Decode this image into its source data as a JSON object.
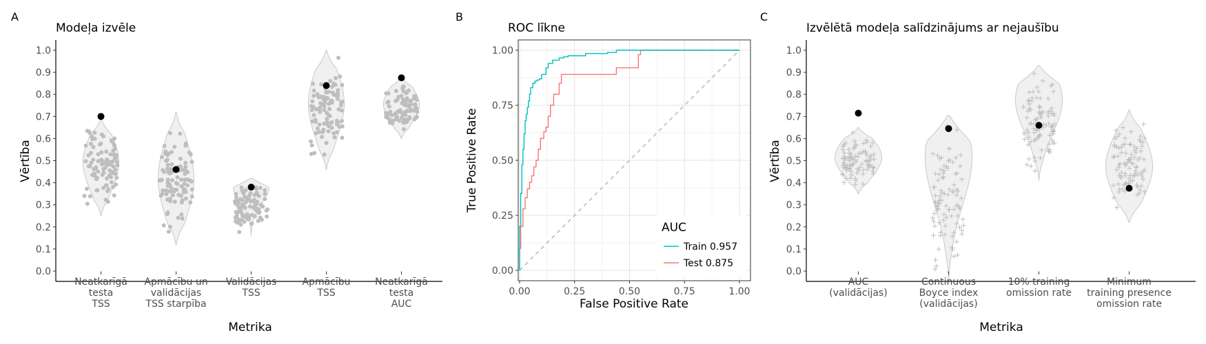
{
  "panels": {
    "a": {
      "tag": "A",
      "title": "Modeļa izvēle",
      "ylabel": "Vērtība",
      "xlabel": "Metrika",
      "yticks": [
        "0.0",
        "0.1",
        "0.2",
        "0.3",
        "0.4",
        "0.5",
        "0.6",
        "0.7",
        "0.8",
        "0.9",
        "1.0"
      ]
    },
    "b": {
      "tag": "B",
      "title": "ROC līkne",
      "ylabel": "True Positive Rate",
      "xlabel": "False Positive Rate",
      "xticks": [
        "0.00",
        "0.25",
        "0.50",
        "0.75",
        "1.00"
      ],
      "yticks": [
        "0.00",
        "0.25",
        "0.50",
        "0.75",
        "1.00"
      ],
      "legend": {
        "title": "AUC",
        "items": [
          "Train 0.957",
          "Test 0.875"
        ]
      }
    },
    "c": {
      "tag": "C",
      "title": "Izvēlētā modeļa salīdzinājums ar nejaušību",
      "ylabel": "Vērtība",
      "xlabel": "Metrika",
      "yticks": [
        "0.0",
        "0.1",
        "0.2",
        "0.3",
        "0.4",
        "0.5",
        "0.6",
        "0.7",
        "0.8",
        "0.9",
        "1.0"
      ]
    }
  },
  "chart_data": [
    {
      "type": "violin",
      "title": "Modeļa izvēle",
      "xlabel": "Metrika",
      "ylabel": "Vērtība",
      "ylim": [
        0,
        1
      ],
      "point_color": "#bebebe",
      "violin_fill": "#f0f0f0",
      "selected_color": "#000000",
      "categories": [
        {
          "label": [
            "Neatkarīgā",
            "testa",
            "TSS"
          ],
          "min": 0.25,
          "max": 0.69,
          "selected": 0.7
        },
        {
          "label": [
            "Apmācību un",
            "validācijas",
            "TSS starpība"
          ],
          "min": 0.12,
          "max": 0.72,
          "selected": 0.46
        },
        {
          "label": [
            "Validācijas",
            "TSS"
          ],
          "min": 0.16,
          "max": 0.42,
          "selected": 0.38
        },
        {
          "label": [
            "Apmācību",
            "TSS"
          ],
          "min": 0.46,
          "max": 1.0,
          "selected": 0.84
        },
        {
          "label": [
            "Neatkarīgā",
            "testa",
            "AUC"
          ],
          "min": 0.6,
          "max": 0.88,
          "selected": 0.875
        }
      ]
    },
    {
      "type": "line",
      "title": "ROC līkne",
      "xlabel": "False Positive Rate",
      "ylabel": "True Positive Rate",
      "xlim": [
        0,
        1
      ],
      "ylim": [
        0,
        1
      ],
      "grid": true,
      "legend_position": "bottom-right",
      "legend_title": "AUC",
      "series": [
        {
          "name": "Train 0.957",
          "color": "#00bfc4",
          "x": [
            0,
            0,
            0.005,
            0.005,
            0.01,
            0.01,
            0.015,
            0.015,
            0.02,
            0.02,
            0.025,
            0.025,
            0.03,
            0.03,
            0.035,
            0.035,
            0.04,
            0.04,
            0.045,
            0.045,
            0.05,
            0.05,
            0.06,
            0.06,
            0.07,
            0.07,
            0.08,
            0.08,
            0.09,
            0.09,
            0.1,
            0.1,
            0.12,
            0.12,
            0.13,
            0.13,
            0.15,
            0.15,
            0.18,
            0.18,
            0.2,
            0.2,
            0.22,
            0.22,
            0.3,
            0.3,
            0.4,
            0.4,
            0.44,
            0.44,
            1
          ],
          "y": [
            0,
            0.2,
            0.2,
            0.35,
            0.35,
            0.48,
            0.48,
            0.55,
            0.55,
            0.62,
            0.62,
            0.68,
            0.68,
            0.71,
            0.71,
            0.74,
            0.74,
            0.77,
            0.77,
            0.8,
            0.8,
            0.83,
            0.83,
            0.85,
            0.85,
            0.86,
            0.86,
            0.865,
            0.865,
            0.87,
            0.87,
            0.89,
            0.89,
            0.92,
            0.92,
            0.94,
            0.94,
            0.955,
            0.955,
            0.965,
            0.965,
            0.97,
            0.97,
            0.975,
            0.975,
            0.985,
            0.985,
            0.99,
            0.99,
            1,
            1
          ]
        },
        {
          "name": "Test 0.875",
          "color": "#f8766d",
          "x": [
            0,
            0,
            0.005,
            0.005,
            0.015,
            0.015,
            0.025,
            0.025,
            0.035,
            0.035,
            0.045,
            0.045,
            0.055,
            0.055,
            0.065,
            0.065,
            0.075,
            0.075,
            0.085,
            0.085,
            0.095,
            0.095,
            0.11,
            0.11,
            0.12,
            0.12,
            0.13,
            0.13,
            0.14,
            0.14,
            0.155,
            0.155,
            0.18,
            0.18,
            0.19,
            0.19,
            0.44,
            0.44,
            0.54,
            0.54,
            0.55,
            0.55,
            1
          ],
          "y": [
            0,
            0.1,
            0.1,
            0.2,
            0.2,
            0.28,
            0.28,
            0.33,
            0.33,
            0.37,
            0.37,
            0.4,
            0.4,
            0.43,
            0.43,
            0.47,
            0.47,
            0.5,
            0.5,
            0.55,
            0.55,
            0.6,
            0.6,
            0.63,
            0.63,
            0.65,
            0.65,
            0.7,
            0.7,
            0.75,
            0.75,
            0.8,
            0.8,
            0.85,
            0.85,
            0.89,
            0.89,
            0.92,
            0.92,
            0.98,
            0.98,
            1,
            1
          ]
        },
        {
          "name": "",
          "color": "#b3b3b3",
          "dashed": true,
          "x": [
            0,
            1
          ],
          "y": [
            0,
            1
          ]
        }
      ]
    },
    {
      "type": "violin",
      "title": "Izvēlētā modeļa salīdzinājums ar nejaušību",
      "xlabel": "Metrika",
      "ylabel": "Vērtība",
      "ylim": [
        0,
        1
      ],
      "point_color": "#bebebe",
      "violin_fill": "#f0f0f0",
      "selected_color": "#000000",
      "categories": [
        {
          "label": [
            "AUC",
            "(validācijas)"
          ],
          "min": 0.35,
          "max": 0.65,
          "selected": 0.715
        },
        {
          "label": [
            "Continuous",
            "Boyce index",
            "(validācijas)"
          ],
          "min": -0.05,
          "max": 0.705,
          "selected": 0.645
        },
        {
          "label": [
            "10% training",
            "omission rate"
          ],
          "min": 0.41,
          "max": 0.93,
          "selected": 0.66
        },
        {
          "label": [
            "Minimum",
            "training presence",
            "omission rate"
          ],
          "min": 0.22,
          "max": 0.73,
          "selected": 0.375
        }
      ]
    }
  ]
}
